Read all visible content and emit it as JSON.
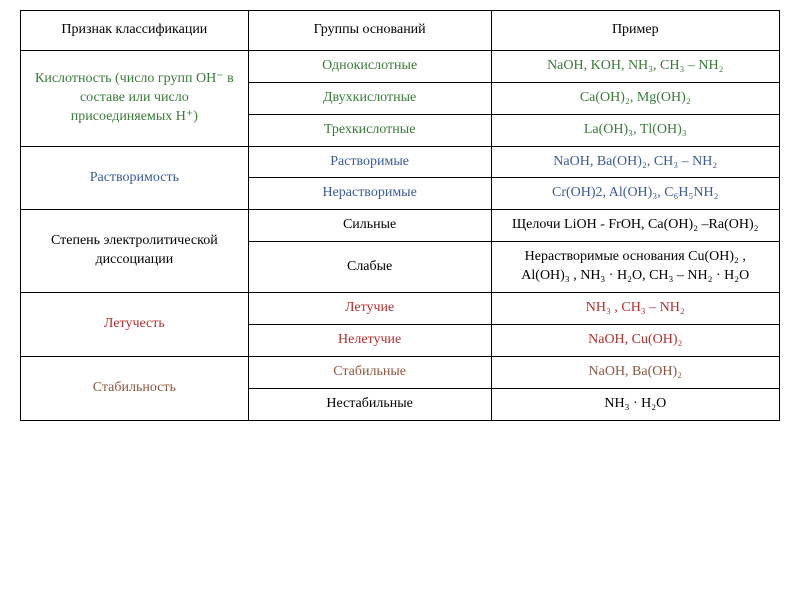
{
  "table": {
    "headers": {
      "col1": "Признак классификации",
      "col2": "Группы оснований",
      "col3": "Пример"
    },
    "groups": [
      {
        "criterion": "Кислотность (число групп OH⁻ в составе или число присоединяемых H⁺)",
        "criterion_color": "green",
        "rows": [
          {
            "group": "Однокислотные",
            "group_color": "green",
            "example": "NaOH, KOH, NH₃, CH₃ – NH₂",
            "example_color": "green"
          },
          {
            "group": "Двухкислотные",
            "group_color": "green",
            "example": "Ca(OH)₂, Mg(OH)₂",
            "example_color": "green"
          },
          {
            "group": "Трехкислотные",
            "group_color": "green",
            "example": "La(OH)₃, Tl(OH)₃",
            "example_color": "green"
          }
        ]
      },
      {
        "criterion": "Растворимость",
        "criterion_color": "blue",
        "rows": [
          {
            "group": "Растворимые",
            "group_color": "blue",
            "example": "NaOH, Ba(OH)₂, CH₃ – NH₂",
            "example_color": "blue"
          },
          {
            "group": "Нерастворимые",
            "group_color": "blue",
            "example": "Cr(OH)2, Al(OH)₃,  C₆H₅NH₂",
            "example_color": "blue"
          }
        ]
      },
      {
        "criterion": "Степень электролитической диссоциации",
        "criterion_color": "black",
        "rows": [
          {
            "group": "Сильные",
            "group_color": "black",
            "example": "Щелочи LiOH - FrOH, Ca(OH)₂ –Ra(OH)₂",
            "example_color": "black"
          },
          {
            "group": "Слабые",
            "group_color": "black",
            "example": "Нерастворимые основания Cu(OH)₂ , Al(OH)₃ , NH₃ · H₂O, CH₃ – NH₂ · H₂O",
            "example_color": "black"
          }
        ]
      },
      {
        "criterion": "Летучесть",
        "criterion_color": "red",
        "rows": [
          {
            "group": "Летучие",
            "group_color": "red",
            "example": "NH₃ , CH₃ – NH₂",
            "example_color": "red"
          },
          {
            "group": "Нелетучие",
            "group_color": "red",
            "example": "NaOH, Cu(OH)₂",
            "example_color": "red"
          }
        ]
      },
      {
        "criterion": "Стабильность",
        "criterion_color": "maroon",
        "rows": [
          {
            "group": "Стабильные",
            "group_color": "maroon",
            "example": "NaOH, Ba(OH)₂",
            "example_color": "maroon"
          },
          {
            "group": "Нестабильные",
            "group_color": "black",
            "example": "NH₃ · H₂O",
            "example_color": "black"
          }
        ]
      }
    ]
  }
}
